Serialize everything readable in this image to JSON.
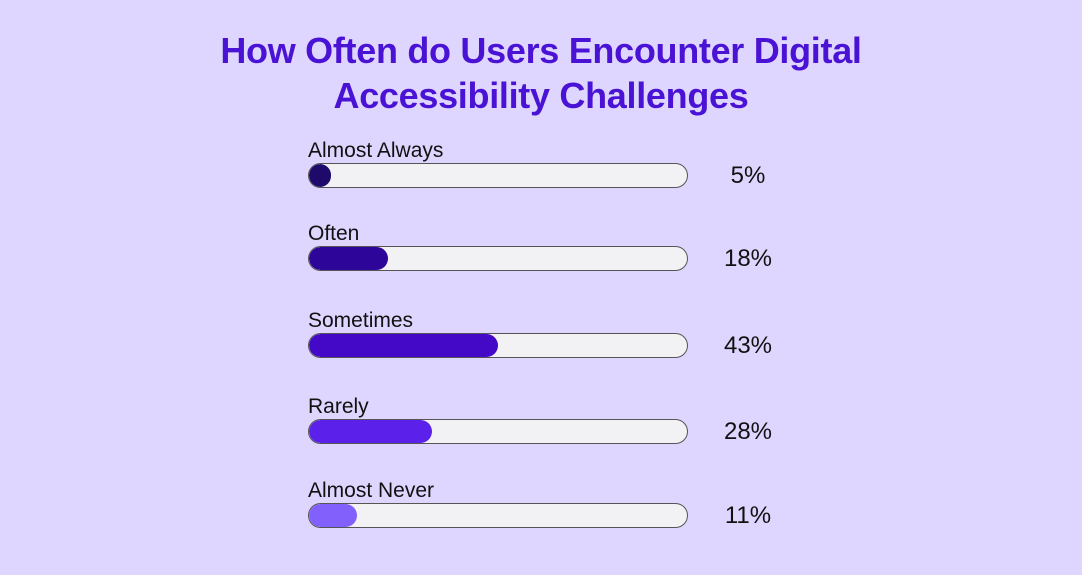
{
  "chart_data": {
    "type": "bar",
    "orientation": "horizontal",
    "title": "How Often do Users Encounter Digital Accessibility Challenges",
    "title_lines": [
      "How Often do Users Encounter Digital",
      "Accessibility Challenges"
    ],
    "categories": [
      "Almost Always",
      "Often",
      "Sometimes",
      "Rarely",
      "Almost Never"
    ],
    "values": [
      5,
      18,
      43,
      28,
      11
    ],
    "value_labels": [
      "5%",
      "18%",
      "43%",
      "28%",
      "11%"
    ],
    "colors": [
      "#1e0a6b",
      "#2e0599",
      "#4408c7",
      "#5b21ea",
      "#8160fb"
    ],
    "unit": "%",
    "grid": false,
    "legend": "none"
  }
}
